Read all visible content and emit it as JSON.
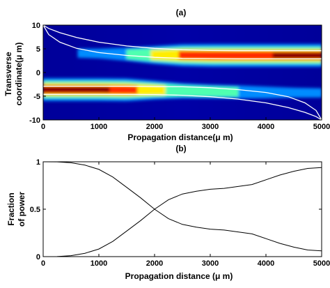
{
  "chart_data": [
    {
      "type": "heatmap",
      "title": "(a)",
      "xlabel": "Propagation distance(μ m)",
      "ylabel_lines": [
        "Transverse",
        "coordinate(μ m)"
      ],
      "xlim": [
        0,
        5000
      ],
      "ylim": [
        -10,
        10
      ],
      "xticks": [
        "0",
        "1000",
        "2000",
        "3000",
        "4000",
        "5000"
      ],
      "yticks": [
        "10",
        "5",
        "0",
        "-5",
        "-10"
      ],
      "colormap": "jet",
      "beam_upper": {
        "center": [
          [
            0,
            4.2
          ],
          [
            1000,
            4.0
          ],
          [
            2000,
            3.7
          ],
          [
            3000,
            3.6
          ],
          [
            4000,
            3.6
          ],
          [
            5000,
            3.6
          ]
        ],
        "relative_intensity": [
          [
            0,
            0.0
          ],
          [
            1000,
            0.08
          ],
          [
            1500,
            0.25
          ],
          [
            2000,
            0.48
          ],
          [
            2500,
            0.68
          ],
          [
            3000,
            0.72
          ],
          [
            3500,
            0.74
          ],
          [
            4000,
            0.82
          ],
          [
            4500,
            0.93
          ],
          [
            5000,
            0.96
          ]
        ]
      },
      "beam_lower": {
        "center": [
          [
            0,
            -3.6
          ],
          [
            1000,
            -3.6
          ],
          [
            2000,
            -3.7
          ],
          [
            3000,
            -4.0
          ],
          [
            4000,
            -4.2
          ],
          [
            5000,
            -4.3
          ]
        ],
        "relative_intensity": [
          [
            0,
            1.0
          ],
          [
            500,
            0.99
          ],
          [
            1000,
            0.92
          ],
          [
            1500,
            0.72
          ],
          [
            2000,
            0.52
          ],
          [
            2500,
            0.34
          ],
          [
            3000,
            0.28
          ],
          [
            3500,
            0.25
          ],
          [
            4000,
            0.18
          ],
          [
            4500,
            0.09
          ],
          [
            5000,
            0.06
          ]
        ]
      },
      "waveguide_outline_color": "#ffffff",
      "waveguide_upper_edges": {
        "inner": [
          [
            0,
            10.0
          ],
          [
            100,
            8.0
          ],
          [
            300,
            6.4
          ],
          [
            600,
            5.1
          ],
          [
            1000,
            4.2
          ],
          [
            1500,
            3.6
          ],
          [
            2000,
            3.2
          ],
          [
            2500,
            3.0
          ],
          [
            3000,
            2.95
          ],
          [
            3500,
            2.9
          ],
          [
            4000,
            2.9
          ],
          [
            5000,
            2.9
          ]
        ],
        "outer": [
          [
            0,
            10.0
          ],
          [
            100,
            9.3
          ],
          [
            300,
            8.4
          ],
          [
            600,
            7.4
          ],
          [
            1000,
            6.4
          ],
          [
            1500,
            5.6
          ],
          [
            2000,
            5.1
          ],
          [
            2500,
            4.8
          ],
          [
            3000,
            4.65
          ],
          [
            3500,
            4.6
          ],
          [
            4000,
            4.6
          ],
          [
            5000,
            4.6
          ]
        ]
      },
      "waveguide_lower_edges": {
        "inner": [
          [
            0,
            -2.9
          ],
          [
            1000,
            -2.9
          ],
          [
            1500,
            -2.9
          ],
          [
            2000,
            -2.95
          ],
          [
            2500,
            -3.0
          ],
          [
            3000,
            -3.2
          ],
          [
            3500,
            -3.6
          ],
          [
            4000,
            -4.2
          ],
          [
            4400,
            -5.1
          ],
          [
            4700,
            -6.4
          ],
          [
            4900,
            -8.0
          ],
          [
            5000,
            -10.0
          ]
        ],
        "outer": [
          [
            0,
            -4.6
          ],
          [
            1000,
            -4.6
          ],
          [
            1500,
            -4.6
          ],
          [
            2000,
            -4.65
          ],
          [
            2500,
            -4.8
          ],
          [
            3000,
            -5.1
          ],
          [
            3500,
            -5.6
          ],
          [
            4000,
            -6.4
          ],
          [
            4400,
            -7.4
          ],
          [
            4700,
            -8.4
          ],
          [
            4900,
            -9.3
          ],
          [
            5000,
            -10.0
          ]
        ]
      }
    },
    {
      "type": "line",
      "title": "(b)",
      "xlabel": "Propagation distance (μ m)",
      "ylabel_lines": [
        "Fraction",
        "of power"
      ],
      "xlim": [
        0,
        5000
      ],
      "ylim": [
        0,
        1
      ],
      "xticks": [
        "0",
        "1000",
        "2000",
        "3000",
        "4000",
        "5000"
      ],
      "yticks": [
        "1",
        "0.5",
        "0"
      ],
      "series": [
        {
          "values": [
            [
              0,
              1.0
            ],
            [
              250,
              0.999
            ],
            [
              500,
              0.99
            ],
            [
              750,
              0.965
            ],
            [
              1000,
              0.92
            ],
            [
              1250,
              0.84
            ],
            [
              1500,
              0.73
            ],
            [
              1750,
              0.62
            ],
            [
              2000,
              0.5
            ],
            [
              2250,
              0.4
            ],
            [
              2500,
              0.34
            ],
            [
              2750,
              0.31
            ],
            [
              3000,
              0.29
            ],
            [
              3250,
              0.28
            ],
            [
              3500,
              0.26
            ],
            [
              3750,
              0.24
            ],
            [
              4000,
              0.19
            ],
            [
              4250,
              0.14
            ],
            [
              4500,
              0.1
            ],
            [
              4750,
              0.07
            ],
            [
              5000,
              0.06
            ]
          ]
        },
        {
          "values": [
            [
              0,
              0.0
            ],
            [
              250,
              0.001
            ],
            [
              500,
              0.01
            ],
            [
              750,
              0.035
            ],
            [
              1000,
              0.08
            ],
            [
              1250,
              0.16
            ],
            [
              1500,
              0.27
            ],
            [
              1750,
              0.38
            ],
            [
              2000,
              0.5
            ],
            [
              2250,
              0.6
            ],
            [
              2500,
              0.66
            ],
            [
              2750,
              0.69
            ],
            [
              3000,
              0.71
            ],
            [
              3250,
              0.72
            ],
            [
              3500,
              0.74
            ],
            [
              3750,
              0.76
            ],
            [
              4000,
              0.81
            ],
            [
              4250,
              0.86
            ],
            [
              4500,
              0.9
            ],
            [
              4750,
              0.93
            ],
            [
              5000,
              0.94
            ]
          ]
        }
      ]
    }
  ]
}
